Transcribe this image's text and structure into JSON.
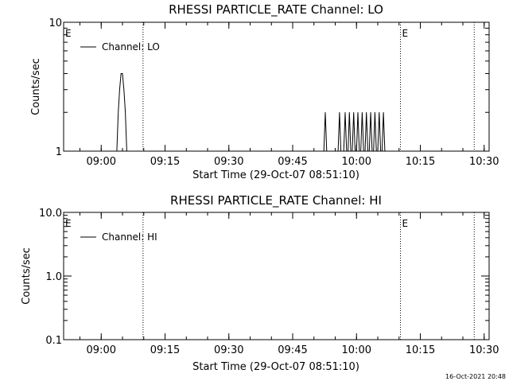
{
  "timestamp": "16-Oct-2021 20:48",
  "chart_data": [
    {
      "type": "line",
      "title": "RHESSI PARTICLE_RATE Channel: LO",
      "xlabel": "Start Time (29-Oct-07 08:51:10)",
      "ylabel": "Counts/sec",
      "yscale": "log",
      "xlim": [
        "08:51:10",
        "10:31:10"
      ],
      "ylim": [
        1,
        10
      ],
      "x_ticks": [
        "09:00",
        "09:15",
        "09:30",
        "09:45",
        "10:00",
        "10:15",
        "10:30"
      ],
      "y_ticks": [
        "1",
        "10"
      ],
      "legend": {
        "label": "Channel: LO",
        "position": "top-left"
      },
      "markers": [
        {
          "label": "E",
          "time": "08:51:10"
        },
        {
          "label": "E",
          "time": "10:10:20"
        }
      ],
      "vlines_dotted": [
        "09:09:50",
        "10:10:20",
        "10:27:40"
      ],
      "series": [
        {
          "name": "Channel: LO",
          "x": [
            "09:03:40",
            "09:04:00",
            "09:04:20",
            "09:04:40",
            "09:05:00",
            "09:05:20",
            "09:05:40",
            "09:06:00",
            "09:06:20",
            "09:52:20",
            "09:52:40",
            "09:53:00",
            "09:55:40",
            "09:56:00",
            "09:56:20",
            "09:57:00",
            "09:57:20",
            "09:57:40",
            "09:58:00",
            "09:58:20",
            "09:58:40",
            "09:59:00",
            "09:59:20",
            "09:59:40",
            "10:00:00",
            "10:00:20",
            "10:00:40",
            "10:01:00",
            "10:01:20",
            "10:01:40",
            "10:02:00",
            "10:02:20",
            "10:02:40",
            "10:03:00",
            "10:03:20",
            "10:03:40",
            "10:04:00",
            "10:04:20",
            "10:04:40",
            "10:05:00",
            "10:05:20",
            "10:05:40",
            "10:06:00",
            "10:06:20",
            "10:06:40"
          ],
          "y": [
            1,
            2,
            3,
            4,
            4,
            3,
            2,
            1,
            1,
            1,
            2,
            1,
            1,
            2,
            1,
            1,
            2,
            1,
            1,
            2,
            1,
            1,
            2,
            1,
            1,
            2,
            1,
            1,
            2,
            1,
            1,
            2,
            1,
            1,
            2,
            1,
            1,
            2,
            1,
            1,
            2,
            1,
            1,
            2,
            1
          ]
        }
      ]
    },
    {
      "type": "line",
      "title": "RHESSI PARTICLE_RATE Channel: HI",
      "xlabel": "Start Time (29-Oct-07 08:51:10)",
      "ylabel": "Counts/sec",
      "yscale": "log",
      "xlim": [
        "08:51:10",
        "10:31:10"
      ],
      "ylim": [
        0.1,
        10
      ],
      "x_ticks": [
        "09:00",
        "09:15",
        "09:30",
        "09:45",
        "10:00",
        "10:15",
        "10:30"
      ],
      "y_ticks": [
        "0.1",
        "1.0",
        "10.0"
      ],
      "legend": {
        "label": "Channel: HI",
        "position": "top-left"
      },
      "markers": [
        {
          "label": "E",
          "time": "08:51:10"
        },
        {
          "label": "E",
          "time": "10:10:20"
        }
      ],
      "vlines_dotted": [
        "09:09:50",
        "10:10:20",
        "10:27:40"
      ],
      "series": [
        {
          "name": "Channel: HI",
          "x": [],
          "y": []
        }
      ]
    }
  ]
}
